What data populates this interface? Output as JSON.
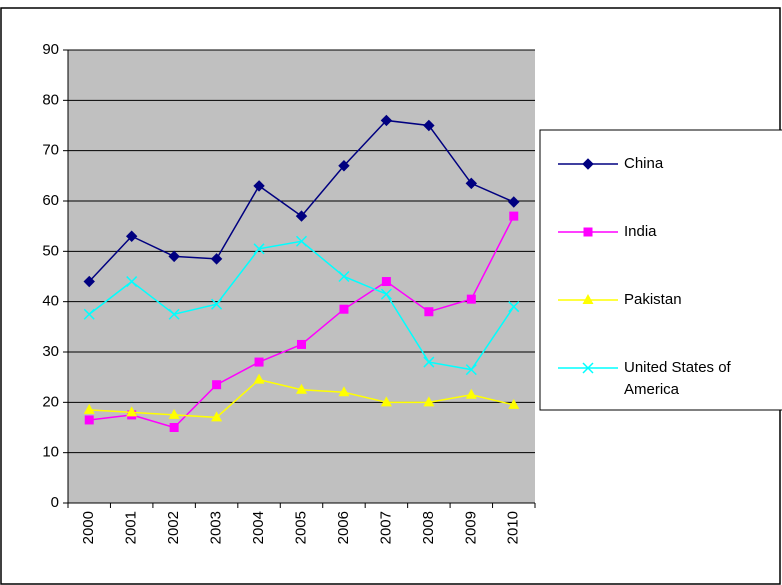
{
  "chart_data": {
    "type": "line",
    "categories": [
      "2000",
      "2001",
      "2002",
      "2003",
      "2004",
      "2005",
      "2006",
      "2007",
      "2008",
      "2009",
      "2010"
    ],
    "series": [
      {
        "name": "China",
        "color": "#000080",
        "marker": "diamond",
        "values": [
          44,
          53,
          49,
          48.5,
          63,
          57,
          67,
          76,
          75,
          63.5,
          59.8
        ]
      },
      {
        "name": "India",
        "color": "#ff00ff",
        "marker": "square",
        "values": [
          16.5,
          17.5,
          15,
          23.5,
          28,
          31.5,
          38.5,
          44,
          38,
          40.5,
          57
        ]
      },
      {
        "name": "Pakistan",
        "color": "#ffff00",
        "marker": "triangle",
        "values": [
          18.5,
          18,
          17.5,
          17,
          24.5,
          22.5,
          22,
          20,
          20,
          21.5,
          19.5
        ]
      },
      {
        "name": "United States of America",
        "color": "#00ffff",
        "marker": "x",
        "values": [
          37.5,
          44,
          37.5,
          39.5,
          50.5,
          52,
          45,
          41.5,
          28,
          26.5,
          39
        ]
      }
    ],
    "ylim": [
      0,
      90
    ],
    "yticks": [
      0,
      10,
      20,
      30,
      40,
      50,
      60,
      70,
      80,
      90
    ],
    "grid": true,
    "legend": "right"
  }
}
